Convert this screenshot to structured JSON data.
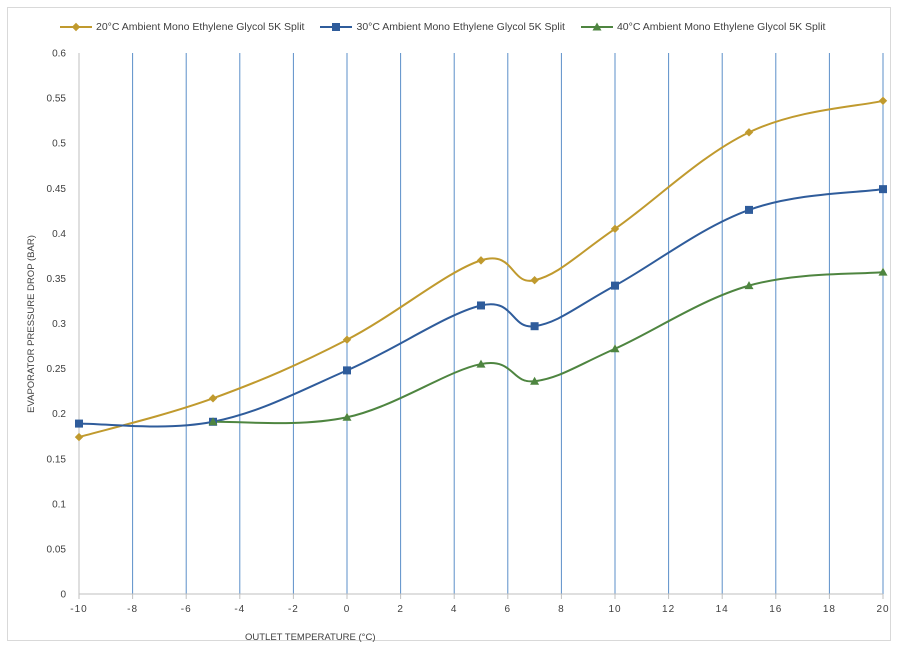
{
  "chart_data": {
    "type": "line",
    "smooth": true,
    "xlabel": "OUTLET TEMPERATURE (°C)",
    "ylabel": "EVAPORATOR PRESSURE DROP (BAR)",
    "xlim": [
      -10,
      20
    ],
    "ylim": [
      0,
      0.6
    ],
    "x_ticks": [
      -10,
      -8,
      -6,
      -4,
      -2,
      0,
      2,
      4,
      6,
      8,
      10,
      12,
      14,
      16,
      18,
      20
    ],
    "x_tick_labels": [
      "-10",
      "-8",
      "-6",
      "-4",
      "-2",
      "0",
      "2",
      "4",
      "6",
      "8",
      "10",
      "12",
      "14",
      "16",
      "18",
      "20"
    ],
    "y_ticks": [
      0,
      0.05,
      0.1,
      0.15,
      0.2,
      0.25,
      0.3,
      0.35,
      0.4,
      0.45,
      0.5,
      0.55,
      0.6
    ],
    "y_tick_labels": [
      "0",
      "0.05",
      "0.1",
      "0.15",
      "0.2",
      "0.25",
      "0.3",
      "0.35",
      "0.4",
      "0.45",
      "0.5",
      "0.55",
      "0.6"
    ],
    "grid": {
      "vertical": true,
      "horizontal": false,
      "color": "#5b8fc9"
    },
    "legend_position": "top",
    "x": [
      -10,
      -5,
      0,
      5,
      7,
      10,
      15,
      20
    ],
    "series": [
      {
        "name": "20°C Ambient Mono Ethylene Glycol 5K Split",
        "marker": "diamond",
        "color": "#c09a2e",
        "values": [
          0.174,
          0.217,
          0.282,
          0.37,
          0.348,
          0.405,
          0.512,
          0.547
        ]
      },
      {
        "name": "30°C Ambient Mono Ethylene Glycol 5K Split",
        "marker": "square",
        "color": "#2f5c9b",
        "values": [
          0.189,
          0.191,
          0.248,
          0.32,
          0.297,
          0.342,
          0.426,
          0.449
        ]
      },
      {
        "name": "40°C Ambient Mono Ethylene Glycol 5K Split",
        "marker": "triangle",
        "color": "#4e8540",
        "values": [
          null,
          0.191,
          0.196,
          0.255,
          0.236,
          0.272,
          0.342,
          0.357
        ]
      }
    ]
  }
}
